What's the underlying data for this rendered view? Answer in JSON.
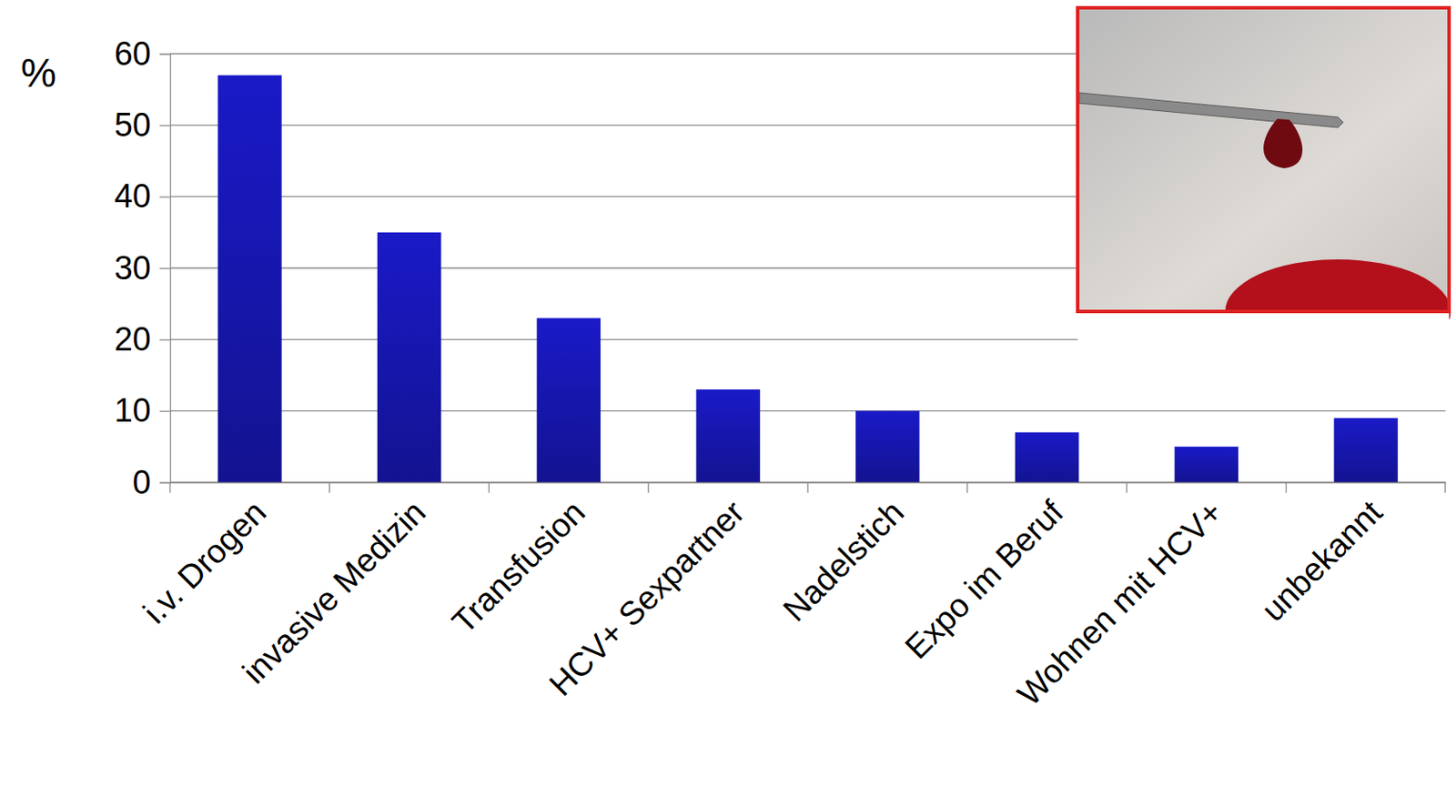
{
  "chart_data": {
    "type": "bar",
    "y_label": "%",
    "categories": [
      "i.v. Drogen",
      "invasive Medizin",
      "Transfusion",
      "HCV+ Sexpartner",
      "Nadelstich",
      "Expo im Beruf",
      "Wohnen mit HCV+",
      "unbekannt"
    ],
    "values": [
      57,
      35,
      23,
      13,
      10,
      7,
      5,
      9
    ],
    "color": "#1a1ac8",
    "ylim": [
      0,
      60
    ],
    "yticks": [
      0,
      10,
      20,
      30,
      40,
      50,
      60
    ],
    "grid": true
  }
}
